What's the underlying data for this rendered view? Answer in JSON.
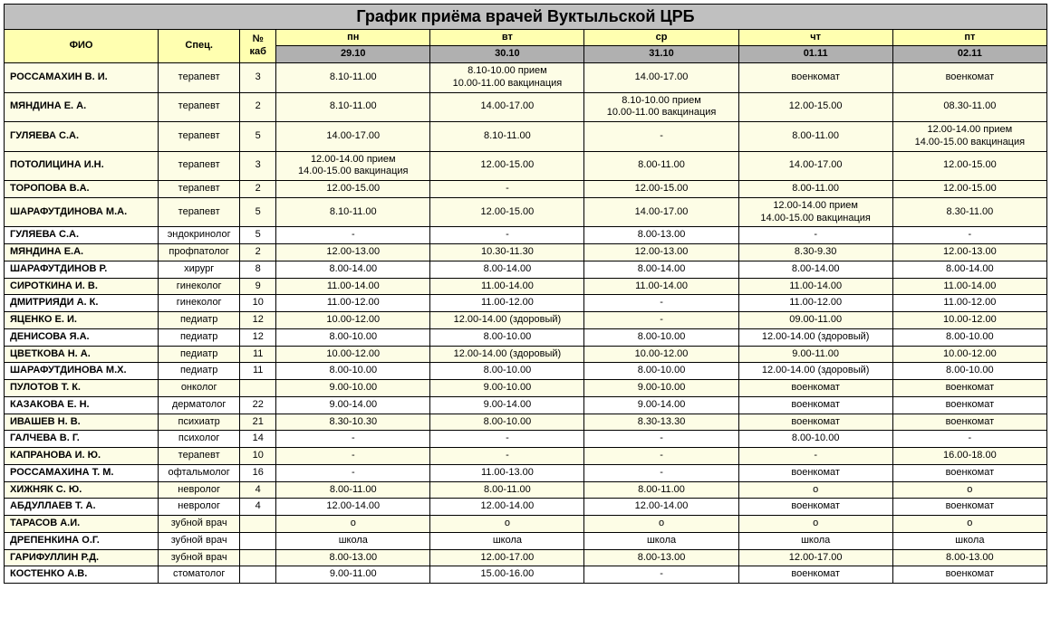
{
  "title": "График приёма врачей Вуктыльской ЦРБ",
  "cols": {
    "fio": "ФИО",
    "spec": "Спец.",
    "kab": "№ каб",
    "days": [
      "пн",
      "вт",
      "ср",
      "чт",
      "пт"
    ],
    "dates": [
      "29.10",
      "30.10",
      "31.10",
      "01.11",
      "02.11"
    ]
  },
  "widths": {
    "fio": 170,
    "spec": 90,
    "kab": 40,
    "day": 170
  },
  "colors": {
    "soft_bg": "#fdfde6",
    "header_yellow": "#ffffb0",
    "header_grey": "#b0b0b0",
    "title_grey": "#c0c0c0",
    "border": "#000000"
  },
  "rows": [
    {
      "style": "soft",
      "bold": true,
      "name": "РОССАМАХИН В. И.",
      "spec": "терапевт",
      "kab": "3",
      "cells": [
        "8.10-11.00",
        "8.10-10.00 прием\n10.00-11.00 вакцинация",
        "14.00-17.00",
        "военкомат",
        "военкомат"
      ]
    },
    {
      "style": "soft",
      "bold": true,
      "name": "МЯНДИНА Е. А.",
      "spec": "терапевт",
      "kab": "2",
      "cells": [
        "8.10-11.00",
        "14.00-17.00",
        "8.10-10.00 прием\n10.00-11.00 вакцинация",
        "12.00-15.00",
        "08.30-11.00"
      ]
    },
    {
      "style": "soft",
      "bold": true,
      "name": "ГУЛЯЕВА С.А.",
      "spec": "терапевт",
      "kab": "5",
      "cells": [
        "14.00-17.00",
        "8.10-11.00",
        "-",
        "8.00-11.00",
        "12.00-14.00 прием\n14.00-15.00 вакцинация"
      ]
    },
    {
      "style": "soft",
      "bold": true,
      "name": "ПОТОЛИЦИНА И.Н.",
      "spec": "терапевт",
      "kab": "3",
      "cells": [
        "12.00-14.00 прием\n14.00-15.00 вакцинация",
        "12.00-15.00",
        "8.00-11.00",
        "14.00-17.00",
        "12.00-15.00"
      ]
    },
    {
      "style": "soft",
      "bold": true,
      "name": "ТОРОПОВА В.А.",
      "spec": "терапевт",
      "kab": "2",
      "cells": [
        "12.00-15.00",
        "-",
        "12.00-15.00",
        "8.00-11.00",
        "12.00-15.00"
      ]
    },
    {
      "style": "soft",
      "bold": true,
      "name": "ШАРАФУТДИНОВА М.А.",
      "spec": "терапевт",
      "kab": "5",
      "cells": [
        "8.10-11.00",
        "12.00-15.00",
        "14.00-17.00",
        "12.00-14.00 прием\n14.00-15.00 вакцинация",
        "8.30-11.00"
      ]
    },
    {
      "style": "plain",
      "bold": true,
      "name": "ГУЛЯЕВА С.А.",
      "spec": "эндокринолог",
      "kab": "5",
      "cells": [
        "-",
        "-",
        "8.00-13.00",
        "-",
        "-"
      ]
    },
    {
      "style": "soft",
      "bold": true,
      "name": "МЯНДИНА Е.А.",
      "spec": "профпатолог",
      "kab": "2",
      "cells": [
        "12.00-13.00",
        "10.30-11.30",
        "12.00-13.00",
        "8.30-9.30",
        "12.00-13.00"
      ]
    },
    {
      "style": "plain",
      "bold": true,
      "name": "ШАРАФУТДИНОВ Р.",
      "spec": "хирург",
      "kab": "8",
      "cells": [
        "8.00-14.00",
        "8.00-14.00",
        "8.00-14.00",
        "8.00-14.00",
        "8.00-14.00"
      ]
    },
    {
      "style": "soft",
      "bold": true,
      "name": "СИРОТКИНА И. В.",
      "spec": "гинеколог",
      "kab": "9",
      "cells": [
        "11.00-14.00",
        "11.00-14.00",
        "11.00-14.00",
        "11.00-14.00",
        "11.00-14.00"
      ]
    },
    {
      "style": "plain",
      "bold": true,
      "name": "ДМИТРИЯДИ А. К.",
      "spec": "гинеколог",
      "kab": "10",
      "cells": [
        "11.00-12.00",
        "11.00-12.00",
        "-",
        "11.00-12.00",
        "11.00-12.00"
      ]
    },
    {
      "style": "soft",
      "bold": true,
      "name": "ЯЦЕНКО Е. И.",
      "spec": "педиатр",
      "kab": "12",
      "cells": [
        "10.00-12.00",
        "12.00-14.00 (здоровый)",
        "-",
        "09.00-11.00",
        "10.00-12.00"
      ]
    },
    {
      "style": "plain",
      "bold": true,
      "name": "ДЕНИСОВА Я.А.",
      "spec": "педиатр",
      "kab": "12",
      "cells": [
        "8.00-10.00",
        "8.00-10.00",
        "8.00-10.00",
        "12.00-14.00 (здоровый)",
        "8.00-10.00"
      ]
    },
    {
      "style": "soft",
      "bold": true,
      "name": "ЦВЕТКОВА Н. А.",
      "spec": "педиатр",
      "kab": "11",
      "cells": [
        "10.00-12.00",
        "12.00-14.00 (здоровый)",
        "10.00-12.00",
        "9.00-11.00",
        "10.00-12.00"
      ]
    },
    {
      "style": "plain",
      "bold": true,
      "name": "ШАРАФУТДИНОВА М.Х.",
      "spec": "педиатр",
      "kab": "11",
      "cells": [
        "8.00-10.00",
        "8.00-10.00",
        "8.00-10.00",
        "12.00-14.00 (здоровый)",
        "8.00-10.00"
      ]
    },
    {
      "style": "soft",
      "bold": true,
      "name": "ПУЛОТОВ Т. К.",
      "spec": "онколог",
      "kab": "",
      "cells": [
        "9.00-10.00",
        "9.00-10.00",
        "9.00-10.00",
        "военкомат",
        "военкомат"
      ]
    },
    {
      "style": "plain",
      "bold": true,
      "name": "КАЗАКОВА Е. Н.",
      "spec": "дерматолог",
      "kab": "22",
      "cells": [
        "9.00-14.00",
        "9.00-14.00",
        "9.00-14.00",
        "военкомат",
        "военкомат"
      ]
    },
    {
      "style": "soft",
      "bold": true,
      "name": "ИВАШЕВ Н. В.",
      "spec": "психиатр",
      "kab": "21",
      "cells": [
        "8.30-10.30",
        "8.00-10.00",
        "8.30-13.30",
        "военкомат",
        "военкомат"
      ]
    },
    {
      "style": "plain",
      "bold": true,
      "name": "ГАЛЧЕВА В. Г.",
      "spec": "психолог",
      "kab": "14",
      "cells": [
        "-",
        "-",
        "-",
        "8.00-10.00",
        "-"
      ]
    },
    {
      "style": "soft",
      "bold": true,
      "name": "КАПРАНОВА И. Ю.",
      "spec": "терапевт",
      "kab": "10",
      "cells": [
        "-",
        "-",
        "-",
        "-",
        "16.00-18.00"
      ]
    },
    {
      "style": "plain",
      "bold": true,
      "name": "РОССАМАХИНА Т. М.",
      "spec": "офтальмолог",
      "kab": "16",
      "cells": [
        "-",
        "11.00-13.00",
        "-",
        "военкомат",
        "военкомат"
      ]
    },
    {
      "style": "soft",
      "bold": true,
      "name": "ХИЖНЯК С. Ю.",
      "spec": "невролог",
      "kab": "4",
      "cells": [
        "8.00-11.00",
        "8.00-11.00",
        "8.00-11.00",
        "о",
        "о"
      ]
    },
    {
      "style": "plain",
      "bold": true,
      "name": "АБДУЛЛАЕВ Т. А.",
      "spec": "невролог",
      "kab": "4",
      "cells": [
        "12.00-14.00",
        "12.00-14.00",
        "12.00-14.00",
        "военкомат",
        "военкомат"
      ]
    },
    {
      "style": "soft",
      "bold": true,
      "name": "ТАРАСОВ А.И.",
      "spec": "зубной врач",
      "kab": "",
      "cells": [
        "о",
        "о",
        "о",
        "о",
        "о"
      ]
    },
    {
      "style": "plain",
      "bold": true,
      "name": "ДРЕПЕНКИНА О.Г.",
      "spec": "зубной врач",
      "kab": "",
      "cells": [
        "школа",
        "школа",
        "школа",
        "школа",
        "школа"
      ]
    },
    {
      "style": "soft",
      "bold": true,
      "name": "ГАРИФУЛЛИН Р.Д.",
      "spec": "зубной врач",
      "kab": "",
      "cells": [
        "8.00-13.00",
        "12.00-17.00",
        "8.00-13.00",
        "12.00-17.00",
        "8.00-13.00"
      ]
    },
    {
      "style": "plain",
      "bold": true,
      "name": "КОСТЕНКО А.В.",
      "spec": "стоматолог",
      "kab": "",
      "cells": [
        "9.00-11.00",
        "15.00-16.00",
        "-",
        "военкомат",
        "военкомат"
      ]
    }
  ]
}
